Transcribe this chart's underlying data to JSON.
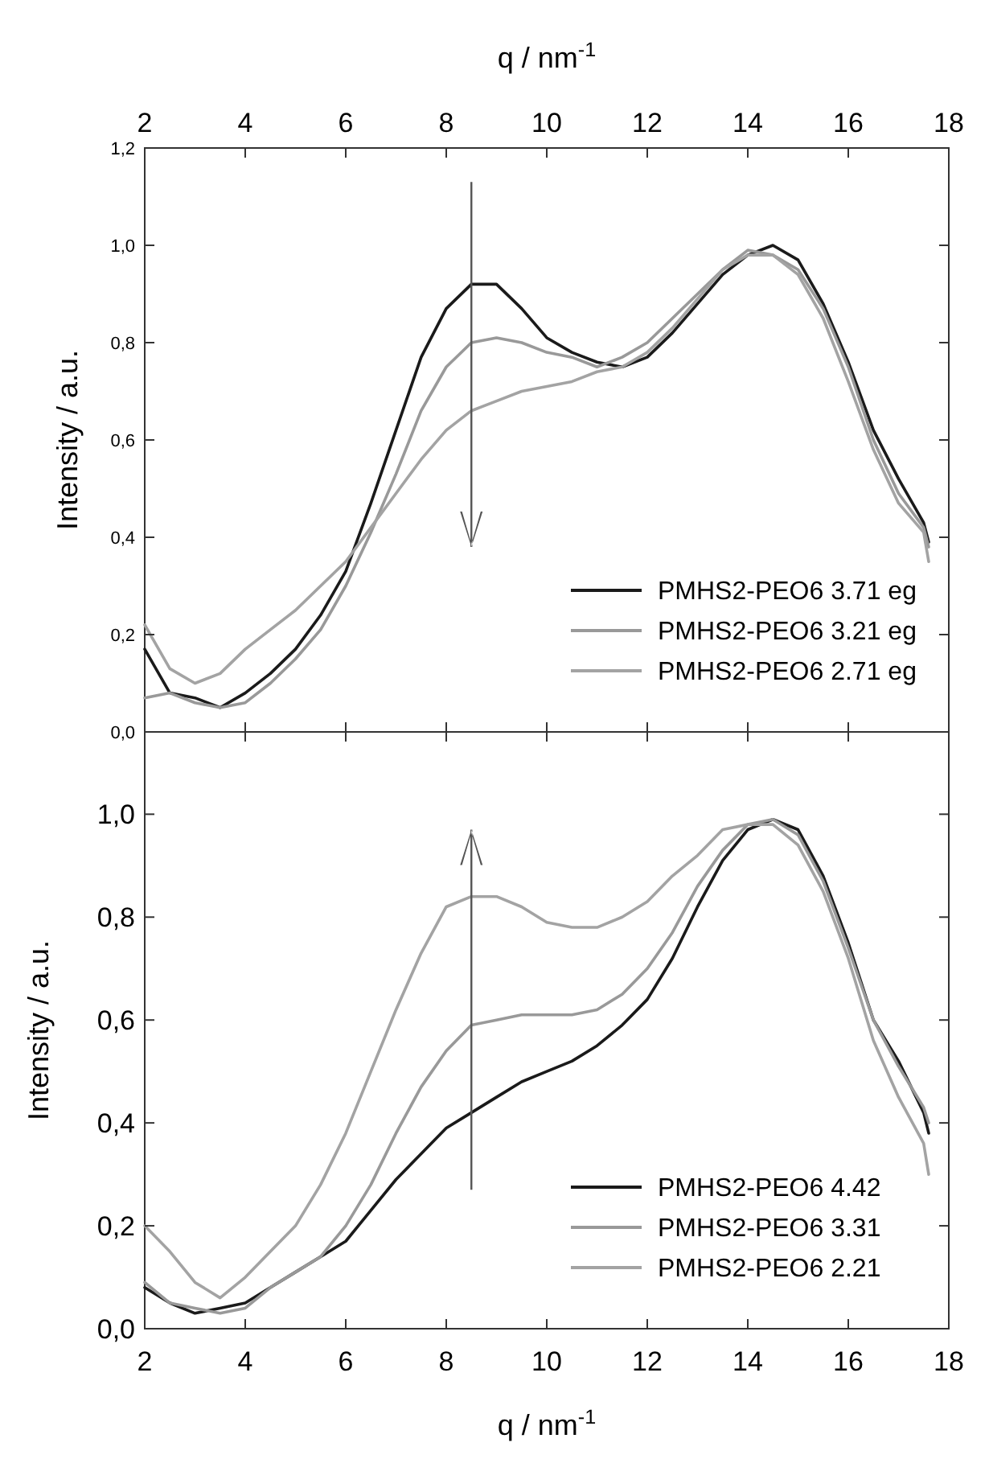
{
  "chart_data": [
    {
      "type": "line",
      "ylabel": "Intensity / a.u.",
      "x2label": "q / nm$^{-1}$",
      "xlim": [
        2,
        18
      ],
      "xticks": [
        2,
        4,
        6,
        8,
        10,
        12,
        14,
        16,
        18
      ],
      "tick_labels": "y",
      "x2lim": [
        2,
        18
      ],
      "x2ticks": [
        2,
        4,
        6,
        8,
        10,
        12,
        14,
        16,
        18
      ],
      "ylim": [
        0,
        1.2
      ],
      "yticks": [
        {
          "value": 0,
          "label": "0,0"
        },
        {
          "value": 0.2,
          "label": "0,2"
        },
        {
          "value": 0.4,
          "label": "0,4"
        },
        {
          "value": 0.6,
          "label": "0,6"
        },
        {
          "value": 0.8,
          "label": "0,8"
        },
        {
          "value": 1,
          "label": "1,0"
        },
        {
          "value": 1.2,
          "label": "1,2"
        }
      ],
      "legend": "bottom right",
      "x": [
        2,
        2.5,
        3,
        3.5,
        4,
        4.5,
        5,
        5.5,
        6,
        6.5,
        7,
        7.5,
        8,
        8.5,
        9,
        9.5,
        10,
        10.5,
        11,
        11.5,
        12,
        12.5,
        13,
        13.5,
        14,
        14.5,
        15,
        15.5,
        16,
        16.5,
        17,
        17.5,
        17.6
      ],
      "series": [
        {
          "name": "PMHS2-PEO6 3.71 eg",
          "color": "#1a1a1a",
          "values": [
            0.17,
            0.08,
            0.07,
            0.05,
            0.08,
            0.12,
            0.17,
            0.24,
            0.33,
            0.47,
            0.62,
            0.77,
            0.87,
            0.92,
            0.92,
            0.87,
            0.81,
            0.78,
            0.76,
            0.75,
            0.77,
            0.82,
            0.88,
            0.94,
            0.98,
            1.0,
            0.97,
            0.88,
            0.76,
            0.62,
            0.52,
            0.43,
            0.39
          ]
        },
        {
          "name": "PMHS2-PEO6 3.21 eg",
          "color": "#999999",
          "values": [
            0.07,
            0.08,
            0.06,
            0.05,
            0.06,
            0.1,
            0.15,
            0.21,
            0.3,
            0.41,
            0.53,
            0.66,
            0.75,
            0.8,
            0.81,
            0.8,
            0.78,
            0.77,
            0.75,
            0.77,
            0.8,
            0.85,
            0.9,
            0.95,
            0.99,
            0.98,
            0.95,
            0.87,
            0.75,
            0.6,
            0.49,
            0.42,
            0.38
          ]
        },
        {
          "name": "PMHS2-PEO6 2.71 eg",
          "color": "#a3a3a3",
          "values": [
            0.22,
            0.13,
            0.1,
            0.12,
            0.17,
            0.21,
            0.25,
            0.3,
            0.35,
            0.42,
            0.49,
            0.56,
            0.62,
            0.66,
            0.68,
            0.7,
            0.71,
            0.72,
            0.74,
            0.75,
            0.78,
            0.83,
            0.89,
            0.95,
            0.98,
            0.98,
            0.94,
            0.85,
            0.72,
            0.58,
            0.47,
            0.41,
            0.35
          ]
        }
      ]
    },
    {
      "type": "line",
      "ylabel": "Intensity / a.u.",
      "xlabel": "q / nm$^{-1}$",
      "xlim": [
        2,
        18
      ],
      "xticks": [
        2,
        4,
        6,
        8,
        10,
        12,
        14,
        16,
        18
      ],
      "ylim": [
        0,
        1.16
      ],
      "yticks": [
        {
          "value": 0,
          "label": "0,0"
        },
        {
          "value": 0.2,
          "label": "0,2"
        },
        {
          "value": 0.4,
          "label": "0,4"
        },
        {
          "value": 0.6,
          "label": "0,6"
        },
        {
          "value": 0.8,
          "label": "0,8"
        },
        {
          "value": 1,
          "label": "1,0"
        }
      ],
      "legend": "bottom right",
      "x": [
        2,
        2.5,
        3,
        3.5,
        4,
        4.5,
        5,
        5.5,
        6,
        6.5,
        7,
        7.5,
        8,
        8.5,
        9,
        9.5,
        10,
        10.5,
        11,
        11.5,
        12,
        12.5,
        13,
        13.5,
        14,
        14.5,
        15,
        15.5,
        16,
        16.5,
        17,
        17.5,
        17.6
      ],
      "series": [
        {
          "name": "PMHS2-PEO6 4.42",
          "color": "#1a1a1a",
          "values": [
            0.08,
            0.05,
            0.03,
            0.04,
            0.05,
            0.08,
            0.11,
            0.14,
            0.17,
            0.23,
            0.29,
            0.34,
            0.39,
            0.42,
            0.45,
            0.48,
            0.5,
            0.52,
            0.55,
            0.59,
            0.64,
            0.72,
            0.82,
            0.91,
            0.97,
            0.99,
            0.97,
            0.88,
            0.75,
            0.6,
            0.52,
            0.42,
            0.38
          ]
        },
        {
          "name": "PMHS2-PEO6 3.31",
          "color": "#999999",
          "values": [
            0.09,
            0.05,
            0.04,
            0.03,
            0.04,
            0.08,
            0.11,
            0.14,
            0.2,
            0.28,
            0.38,
            0.47,
            0.54,
            0.59,
            0.6,
            0.61,
            0.61,
            0.61,
            0.62,
            0.65,
            0.7,
            0.77,
            0.86,
            0.93,
            0.98,
            0.99,
            0.96,
            0.87,
            0.74,
            0.6,
            0.51,
            0.43,
            0.4
          ]
        },
        {
          "name": "PMHS2-PEO6 2.21",
          "color": "#a3a3a3",
          "values": [
            0.2,
            0.15,
            0.09,
            0.06,
            0.1,
            0.15,
            0.2,
            0.28,
            0.38,
            0.5,
            0.62,
            0.73,
            0.82,
            0.84,
            0.84,
            0.82,
            0.79,
            0.78,
            0.78,
            0.8,
            0.83,
            0.88,
            0.92,
            0.97,
            0.98,
            0.98,
            0.94,
            0.85,
            0.72,
            0.56,
            0.45,
            0.36,
            0.3
          ]
        }
      ]
    }
  ]
}
